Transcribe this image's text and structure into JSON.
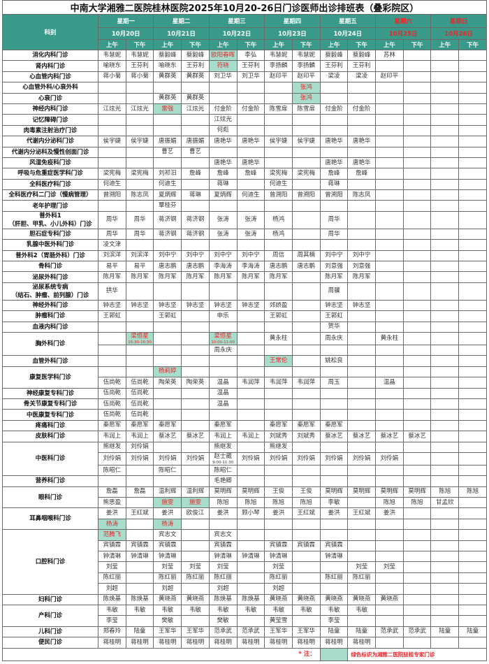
{
  "title": "中南大学湘雅二医院桂林医院2025年10月20-26日门诊医师出诊排班表（叠彩院区）",
  "dept_header": "科别",
  "sessions": [
    "上午",
    "下午"
  ],
  "colors": {
    "header_bg": "#3a9a8a",
    "highlight_bg": "#a8dccb",
    "weekend_text": "#e8262b"
  },
  "days": [
    {
      "label": "星期一",
      "date": "10月20日",
      "weekend": false
    },
    {
      "label": "星期二",
      "date": "10月21日",
      "weekend": false
    },
    {
      "label": "星期三",
      "date": "10月22日",
      "weekend": false
    },
    {
      "label": "星期四",
      "date": "10月23日",
      "weekend": false
    },
    {
      "label": "星期五",
      "date": "10月24日",
      "weekend": false
    },
    {
      "label": "星期六",
      "date": "10月25日",
      "weekend": true
    },
    {
      "label": "星期日",
      "date": "10月26日",
      "weekend": true
    }
  ],
  "departments": [
    {
      "name": "消化内科门诊",
      "rows": [
        [
          "韦慧妮",
          "韦慧妮",
          "蔡毅峰",
          "蔡毅峰",
          {
            "n": "欧阳春晖",
            "hl": true
          },
          "李弘",
          "韦慧妮",
          "韦慧妮",
          "蔡毅峰",
          "蔡毅峰",
          "苏林"
        ]
      ]
    },
    {
      "name": "肾内科门诊",
      "rows": [
        [
          "喻晓东",
          "王芬利",
          "喻晓东",
          "王芬利",
          {
            "n": "符晓",
            "hl": true
          },
          "王芬利",
          "李扬麟",
          "李扬麟",
          "王芬利",
          "王芬利"
        ]
      ]
    },
    {
      "name": "心血管内科门诊",
      "rows": [
        [
          "蒋小菊",
          "蒋小菊",
          "黄群英",
          "黄群英",
          "刘卫华",
          "刘卫华",
          "赵印平",
          "赵印平",
          "梁凌",
          "梁凌",
          "赵印平"
        ]
      ]
    },
    {
      "name": "心血管外科/心衰外科",
      "rows": [
        [
          "",
          "",
          "",
          "",
          "",
          "",
          "",
          {
            "n": "张鸿",
            "hl": true
          }
        ]
      ]
    },
    {
      "name": "心衰门诊",
      "rows": [
        [
          "",
          "",
          "黄群英",
          "黄群英",
          "",
          "",
          "",
          {
            "n": "张鸿",
            "hl": true
          }
        ]
      ]
    },
    {
      "name": "神经内科门诊",
      "rows": [
        [
          "江炫光",
          "江炫光",
          {
            "n": "雷强",
            "hl": true
          },
          "江炫光",
          "付金阶",
          "付金阶",
          "陈雪扉",
          "陈雪扉",
          "付金阶",
          "付金阶"
        ]
      ]
    },
    {
      "name": "记忆障碍门诊",
      "rows": [
        [
          "",
          "",
          "",
          "",
          "江炫光"
        ]
      ]
    },
    {
      "name": "肉毒素注射治疗门诊",
      "rows": [
        [
          "",
          "",
          "",
          "",
          "何彪"
        ]
      ]
    },
    {
      "name": "代谢内分泌科门诊",
      "rows": [
        [
          "侯宇婕",
          "侯宇婕",
          "唐振媚",
          "唐振媚",
          "唐艳华",
          "唐艳华",
          "侯宇婕",
          "侯宇婕",
          "唐艳华",
          "唐艳华"
        ]
      ]
    },
    {
      "name": "代谢内分泌科及慢性创面门诊",
      "rows": [
        [
          "",
          "",
          "曹艺",
          "曹艺"
        ]
      ]
    },
    {
      "name": "风湿免疫科门诊",
      "rows": [
        [
          "",
          "",
          "",
          "",
          "唐艳华",
          "唐艳华",
          "",
          "",
          "唐艳华",
          "唐艳华"
        ]
      ]
    },
    {
      "name": "呼吸与危重症医学科门诊",
      "rows": [
        [
          "梁宪梅",
          "梁宪梅",
          "刘祁汨",
          "詹峰",
          "詹峰",
          "詹峰",
          "梁宪梅",
          "梁宪梅",
          "詹峰",
          "詹峰"
        ]
      ]
    },
    {
      "name": "全科医疗科门诊",
      "rows": [
        [
          "何迪生",
          "",
          "何迪生",
          "",
          "蒋琳",
          "",
          "何迪生",
          "",
          "蒋琳"
        ]
      ]
    },
    {
      "name": "全科医疗科二门诊（慢病管理）",
      "rows": [
        [
          "曾溯阳",
          "陈志凤",
          "夏炳辉",
          "蒋琳",
          "夏炳辉",
          "何迪生",
          "曾溯阳",
          "曾溯阳",
          "曾溯阳",
          "陈志凤"
        ]
      ]
    },
    {
      "name": "老年护理门诊",
      "rows": [
        [
          "",
          "",
          "覃桂芬"
        ]
      ]
    },
    {
      "name": "普外科1\n（肝胆、甲乳、小儿外科）门诊",
      "rows": [
        [
          "周华",
          "周华",
          "蒋济钢",
          "蒋济钢",
          "张涛",
          "张涛",
          "杨鸿",
          "",
          "周华"
        ]
      ]
    },
    {
      "name": "胆石症专科门诊",
      "rows": [
        [
          "周华",
          "周华",
          "蒋济钢",
          "蒋济钢",
          "张涛",
          "张涛",
          "杨鸿",
          "",
          "周华"
        ]
      ]
    },
    {
      "name": "乳腺中医外科门诊",
      "rows": [
        [
          "凌文津"
        ]
      ]
    },
    {
      "name": "普外科2（胃肠外科）门诊",
      "rows": [
        [
          "刘滨洋",
          "刘滨洋",
          "刘中宁",
          "刘中宁",
          "刘中宁",
          "刘中宁",
          "周信",
          "周其楠",
          "刘中宁",
          "刘中宁"
        ]
      ]
    },
    {
      "name": "骨科门诊",
      "rows": [
        [
          "易平",
          "易平",
          "唐志鹏",
          "唐志鹏",
          "李海涛",
          "李海涛",
          "唐志鹏",
          "唐志鹏",
          "刘意强",
          "刘意强"
        ]
      ]
    },
    {
      "name": "泌尿外科门诊",
      "rows": [
        [
          "陈月军",
          "陈月军",
          "陈月军",
          "陈月军",
          "陈月军",
          "陈月军",
          "陈月军",
          "",
          "陈月军",
          "陈月军"
        ]
      ]
    },
    {
      "name": "泌尿系统专病\n（结石、肿瘤、前列腺）门诊",
      "rows": [
        [
          "拱华",
          "",
          "",
          "",
          "",
          "",
          "",
          "",
          "周骥"
        ]
      ]
    },
    {
      "name": "神经外科门诊",
      "rows": [
        [
          "钟志坚",
          "钟志坚",
          "钟志坚",
          "钟志坚",
          "钟志坚",
          "钟志坚",
          "郊娇盈",
          "",
          "钟志坚",
          "钟志坚"
        ]
      ]
    },
    {
      "name": "肿瘤科门诊",
      "rows": [
        [
          "王郭虹",
          "",
          "王郭虹",
          "",
          "申乐",
          "",
          "王郭虹",
          "",
          "王郭虹"
        ]
      ]
    },
    {
      "name": "血液内科门诊",
      "rows": [
        [
          "",
          "",
          "",
          "",
          "",
          "",
          "",
          "",
          "贺华"
        ]
      ]
    },
    {
      "name": "胸外科门诊",
      "rows": [
        [
          "",
          {
            "n": "梁恒星",
            "hl": true,
            "t": "15:30-16:30"
          },
          "",
          "",
          {
            "n": "梁恒星",
            "hl": true,
            "t": "10:00-11:00"
          },
          "",
          "黄永柱",
          "",
          "周永庆",
          "",
          "黄永柱"
        ],
        [
          "",
          "",
          "",
          "",
          "周永庆"
        ]
      ]
    },
    {
      "name": "血管外科门诊",
      "rows": [
        [
          "",
          "",
          "",
          "",
          "",
          "",
          {
            "n": "王常伦",
            "hl": true
          },
          "",
          "姚松良"
        ]
      ]
    },
    {
      "name": "康复医学科门诊",
      "rows": [
        [
          "",
          "",
          {
            "n": "杨莉婷",
            "hl": true
          }
        ],
        [
          "伍尚乾",
          "伍尚乾",
          "陶荣英",
          "陶荣英",
          "温晶",
          "韦润萍",
          "韦润萍",
          "韦润萍",
          "周玉",
          "",
          "温晶"
        ]
      ]
    },
    {
      "name": "神经康复专科门诊",
      "rows": [
        [
          "伍尚乾",
          "伍尚乾",
          "",
          "",
          "温晶"
        ]
      ]
    },
    {
      "name": "骨关节康复专科门诊",
      "rows": [
        [
          "伍尚乾",
          "伍尚乾",
          "",
          "",
          "温晶"
        ]
      ]
    },
    {
      "name": "中医康复专科门诊",
      "rows": [
        [
          "伍尚乾",
          "伍尚乾"
        ]
      ]
    },
    {
      "name": "疼痛科门诊",
      "rows": [
        [
          "秦愿军",
          "秦愿军",
          "秦愿军",
          "",
          "秦愿军",
          "",
          "秦愿军",
          "秦愿军",
          "秦愿军"
        ]
      ]
    },
    {
      "name": "皮肤科门诊",
      "rows": [
        [
          "韦润上",
          "韦润上",
          "蔡冰艺",
          "蔡冰艺",
          "韦润上",
          "韦润上",
          "刘斌秀",
          "刘斌秀",
          "蔡冰艺",
          "蔡冰艺",
          "蔡冰艺",
          "蔡冰艺"
        ]
      ]
    },
    {
      "name": "中医科门诊",
      "rows": [
        [
          "熊继发",
          "刘伶娟",
          "",
          "",
          "熊继发",
          "",
          "熊继发"
        ],
        [
          "刘伶娟",
          "刘伶娟",
          "刘伶娟",
          "刘伶娟",
          {
            "n": "赵士葳",
            "t": "9:00-11:30"
          },
          "刘伶娟",
          "刘伶娟",
          "刘伶娟",
          "刘伶娟",
          "刘伶娟",
          "刘伶娟"
        ],
        [
          "陈昭仁",
          "",
          "陈昭仁",
          "",
          "陈昭仁"
        ]
      ]
    },
    {
      "name": "营养科门诊",
      "rows": [
        [
          "",
          "",
          "",
          "",
          "毛艳卿"
        ]
      ]
    },
    {
      "name": "眼科门诊",
      "rows": [
        [
          "詹磊",
          "詹磊",
          "温利辉",
          "温利辉",
          "莫明辉",
          "莫明辉",
          "王俊",
          "王俊",
          "莫明辉",
          "莫明辉",
          "莫明辉",
          "莫明辉",
          "陈旭",
          "陈旭"
        ],
        [
          "熊思盈",
          "",
          {
            "n": "施雯",
            "hl": true
          },
          {
            "n": "施雯",
            "hl": true
          },
          "陈旭",
          "陈旭",
          "陈旭",
          "陈旭",
          "李敏",
          "",
          "陈旭",
          "陈旭",
          "甘孟欣"
        ]
      ]
    },
    {
      "name": "耳鼻咽喉科门诊",
      "rows": [
        [
          "姜洪",
          "王红斌",
          "姜洪",
          "欧俊江",
          "姜洪",
          "顾小琴",
          "姜洪",
          "王红斌",
          "姜洪",
          "王红斌",
          "姜洪"
        ],
        [
          {
            "n": "杨涛",
            "hl": true
          },
          "",
          {
            "n": "杨涛",
            "hl": true
          }
        ]
      ]
    },
    {
      "name": "口腔科门诊",
      "rows": [
        [
          {
            "n": "范腾飞",
            "hl": true
          },
          "",
          "宾志文",
          "",
          "宾志文"
        ],
        [
          "宾镇霖",
          "宾镇霖",
          "宾镇霖",
          "",
          "宾镇霖",
          "",
          "宾镇霖",
          "宾镇霖",
          "宾镇霖"
        ],
        [
          "钟清琳",
          "钟清琳",
          "钟清琳",
          "",
          "钟清琳",
          "钟清琳",
          "钟清琳",
          "",
          "钟清琳"
        ],
        [
          "刘莹",
          "",
          "刘莹",
          "刘莹",
          "刘莹",
          "",
          "刘莹",
          "",
          "",
          "刘莹",
          "刘莹"
        ],
        [
          "陈红丽",
          "",
          "陈红丽",
          "陈红丽",
          "陈红丽",
          "",
          "陈红丽",
          "",
          "陈红丽",
          "陈红丽"
        ],
        [
          "刘超",
          "",
          "刘超",
          "",
          "刘超",
          "",
          "刘超"
        ]
      ]
    },
    {
      "name": "妇科门诊",
      "rows": [
        [
          "陈焕基",
          "陈焕基",
          "黄晓燕",
          "黄晓燕",
          "陈焕基",
          "陈焕基",
          "黄晓燕",
          "黄晓燕",
          "黄晓燕",
          "黄晓燕",
          "黄晓燕"
        ]
      ]
    },
    {
      "name": "产科门诊",
      "rows": [
        [
          "韦敏",
          "韦敏",
          "韦敏",
          "韦敏",
          "韦敏",
          "韦敏",
          "韦敏",
          "韦敏",
          "韦敏",
          "韦敏"
        ],
        [
          "李莹",
          "",
          "樊敏",
          "",
          "樊敏",
          "",
          "黄莹雪",
          "",
          "李莹"
        ]
      ]
    },
    {
      "name": "儿科门诊",
      "rows": [
        [
          "郑春玲",
          "陆童",
          "王军华",
          "王军华",
          "范承武",
          "范承武",
          "王军华",
          "王军华",
          "陆童",
          "陆童",
          "范承武",
          "范承武",
          "陆童",
          "陆童"
        ]
      ]
    },
    {
      "name": "便民门诊",
      "rows": [
        [
          "蒋桂明",
          "蒋桂明",
          "蒋桂明",
          "蒋桂明",
          "蒋桂明",
          "蒋桂明",
          "蒋桂明",
          "蒋桂明",
          "蒋桂明",
          "蒋桂明"
        ]
      ]
    }
  ],
  "note": {
    "label": "* 注：",
    "text": "绿色标识为湘雅二医院驻桂专家门诊"
  }
}
